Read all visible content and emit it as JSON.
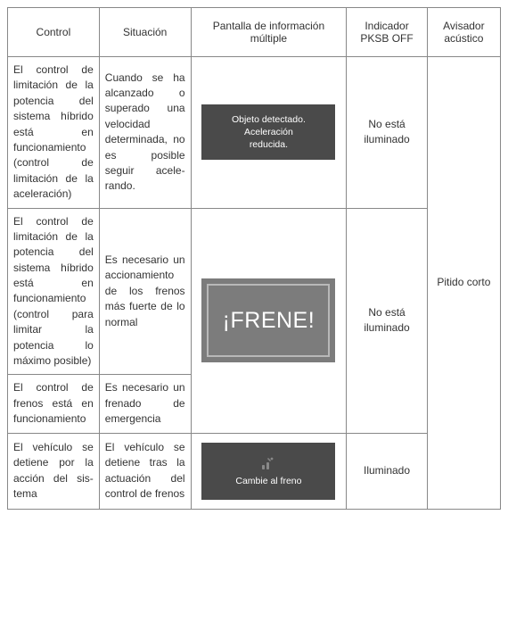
{
  "colors": {
    "dark_bg": "#4a4a4a",
    "mid_bg": "#7c7c7c",
    "inner_border": "#b8b8b8",
    "text_light": "#ffffff"
  },
  "columns": {
    "control": "Control",
    "situacion": "Situación",
    "display": "Pantalla de información múltiple",
    "pksb": "Indicador PKSB OFF",
    "avisador": "Avisador acústico"
  },
  "col_widths": {
    "control": 100,
    "situacion": 100,
    "display": 170,
    "pksb": 88,
    "avisador": 80
  },
  "avisador_merged": "Pitido corto",
  "rows": [
    {
      "control": "El control de limitación de la potencia del sistema híbrido está en funciona­miento (con­trol de limitación de la acelera­ción)",
      "situacion": "Cuando se ha alcanzado o superado una velocidad determinada, no es posible seguir acele­rando.",
      "display_type": "small_dark",
      "display_lines": [
        "Objeto detectado.",
        "Aceleración",
        "reducida."
      ],
      "pksb": "No está iluminado"
    },
    {
      "control": "El control de limitación de la potencia del sistema híbrido está en funciona­miento (con­trol para limitar la potencia lo máximo posi­ble)",
      "situacion": "Es necesario un acciona­miento de los frenos más fuerte de lo normal",
      "display_type": "large_mid",
      "display_text": "¡FRENE!",
      "pksb": "No está iluminado",
      "pksb_rowspan": 2,
      "display_rowspan": 2
    },
    {
      "control": "El control de frenos está en funciona­miento",
      "situacion": "Es necesario un frenado de emergencia"
    },
    {
      "control": "El vehículo se detiene por la acción del sis­tema",
      "situacion": "El vehículo se detiene tras la actuación del control de fre­nos",
      "display_type": "icon_dark",
      "display_text": "Cambie al freno",
      "pksb": "Iluminado"
    }
  ]
}
